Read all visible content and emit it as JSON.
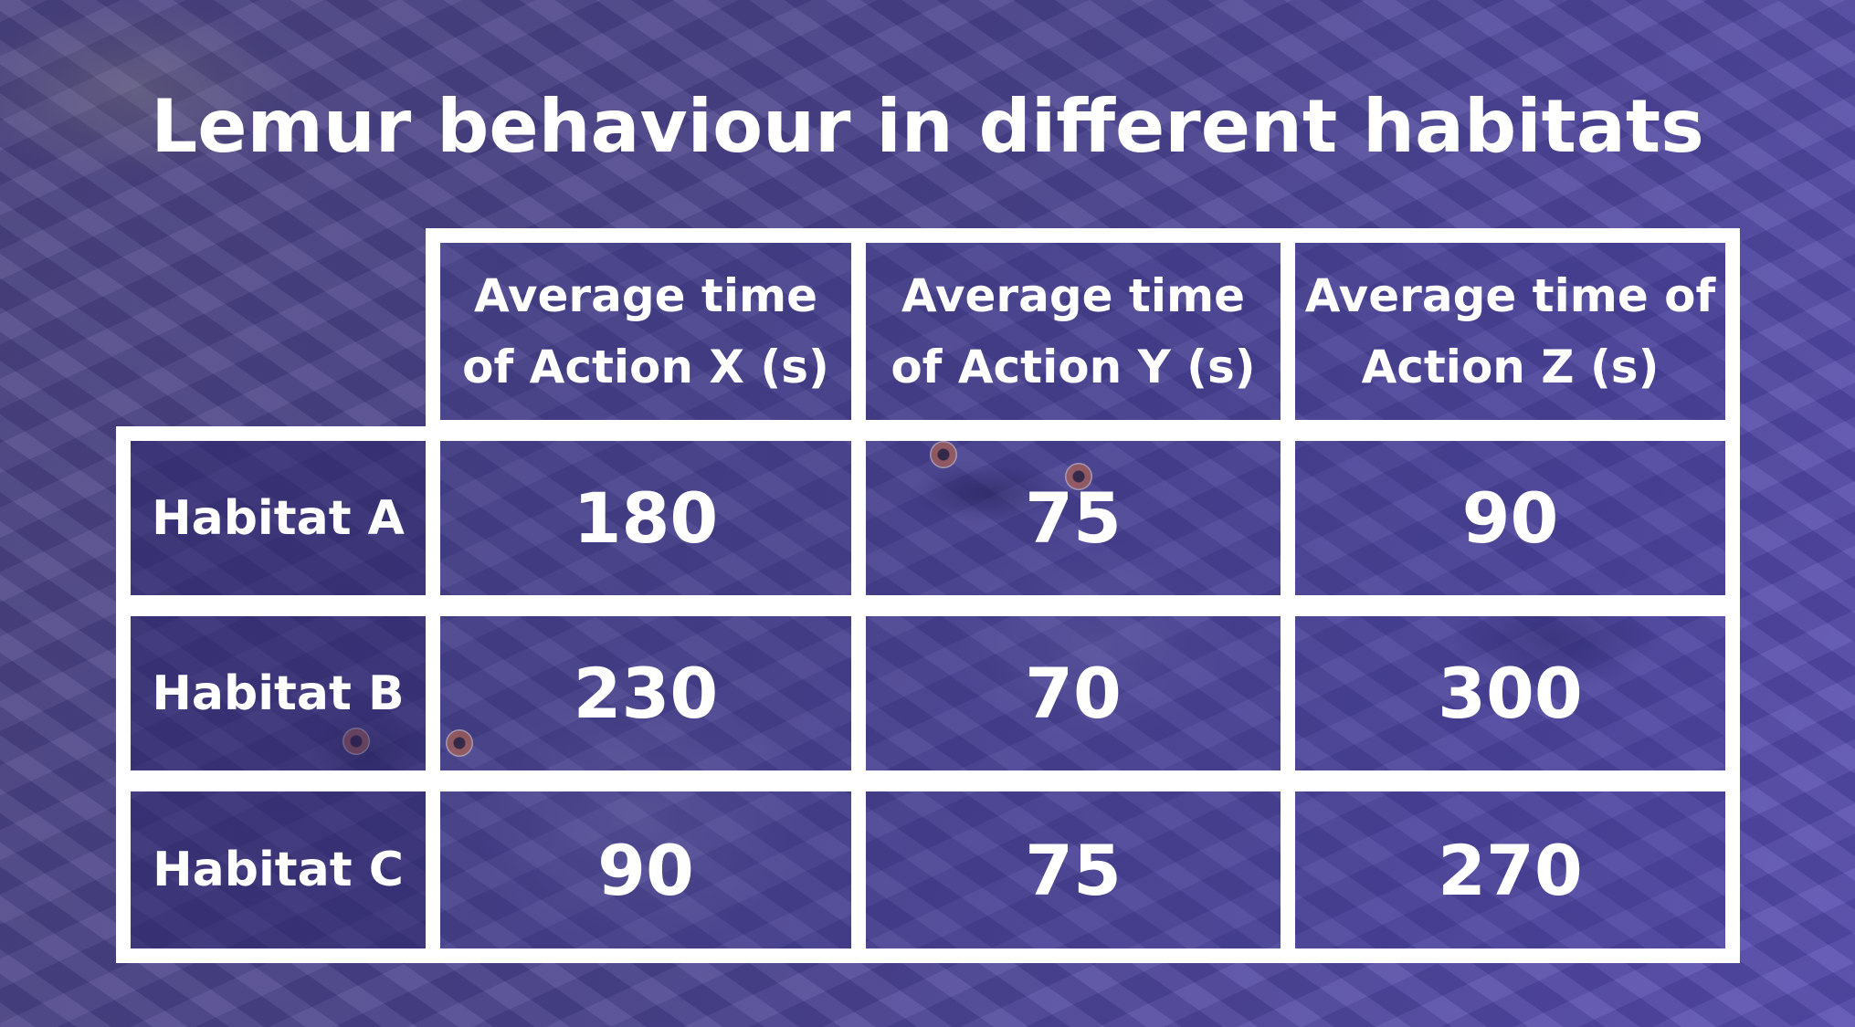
{
  "slide": {
    "title": "Lemur behaviour in different habitats"
  },
  "table": {
    "columns": [
      "Average time of Action X (s)",
      "Average time of Action Y (s)",
      "Average time of Action Z (s)"
    ],
    "rows": [
      {
        "label": "Habitat A",
        "values": [
          "180",
          "75",
          "90"
        ]
      },
      {
        "label": "Habitat B",
        "values": [
          "230",
          "70",
          "300"
        ]
      },
      {
        "label": "Habitat C",
        "values": [
          "90",
          "75",
          "270"
        ]
      }
    ]
  },
  "colors": {
    "background_tint": "#4d4690",
    "text": "#ffffff",
    "border": "#ffffff"
  }
}
